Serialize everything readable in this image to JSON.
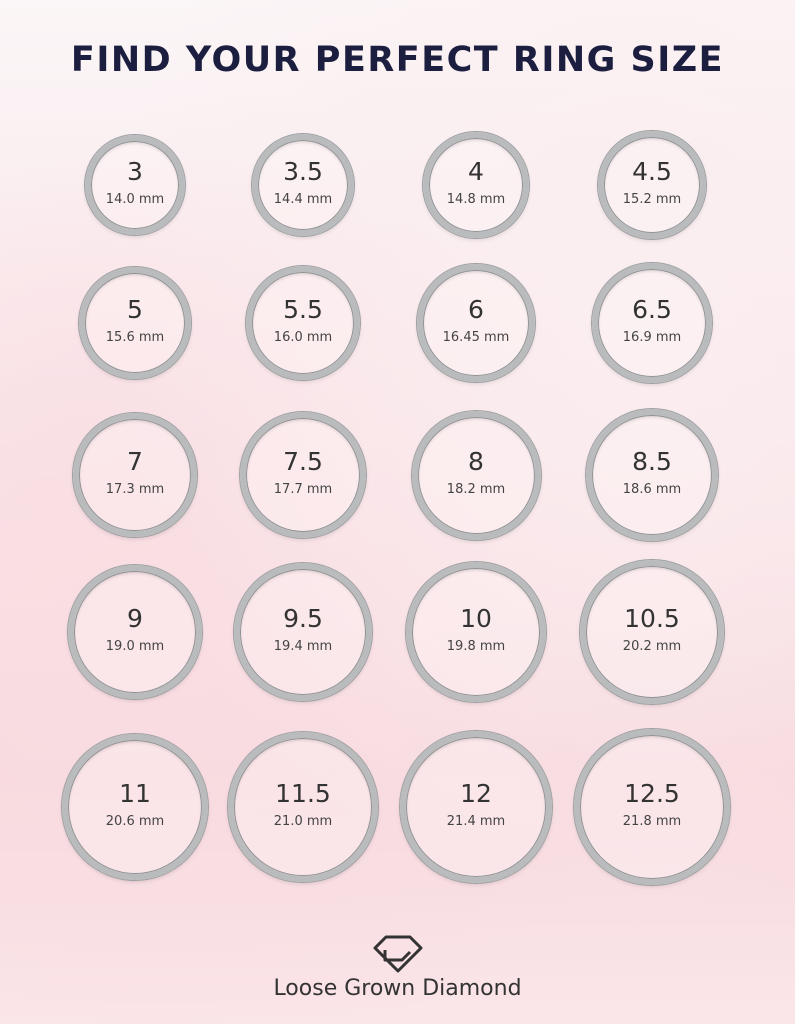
{
  "title": "FIND YOUR PERFECT RING SIZE",
  "rings": [
    {
      "size": "3",
      "mm": "14.0 mm"
    },
    {
      "size": "3.5",
      "mm": "14.4 mm"
    },
    {
      "size": "4",
      "mm": "14.8 mm"
    },
    {
      "size": "4.5",
      "mm": "15.2 mm"
    },
    {
      "size": "5",
      "mm": "15.6 mm"
    },
    {
      "size": "5.5",
      "mm": "16.0 mm"
    },
    {
      "size": "6",
      "mm": "16.45 mm"
    },
    {
      "size": "6.5",
      "mm": "16.9 mm"
    },
    {
      "size": "7",
      "mm": "17.3 mm"
    },
    {
      "size": "7.5",
      "mm": "17.7 mm"
    },
    {
      "size": "8",
      "mm": "18.2 mm"
    },
    {
      "size": "8.5",
      "mm": "18.6 mm"
    },
    {
      "size": "9",
      "mm": "19.0 mm"
    },
    {
      "size": "9.5",
      "mm": "19.4 mm"
    },
    {
      "size": "10",
      "mm": "19.8 mm"
    },
    {
      "size": "10.5",
      "mm": "20.2 mm"
    },
    {
      "size": "11",
      "mm": "20.6 mm"
    },
    {
      "size": "11.5",
      "mm": "21.0 mm"
    },
    {
      "size": "12",
      "mm": "21.4  mm"
    },
    {
      "size": "12.5",
      "mm": "21.8 mm"
    }
  ],
  "brand": "Loose Grown Diamond",
  "logo_icon": "diamond-logo-icon",
  "colors": {
    "title": "#1b1e3f",
    "ring": "#b9bbbd",
    "text": "#333333"
  }
}
